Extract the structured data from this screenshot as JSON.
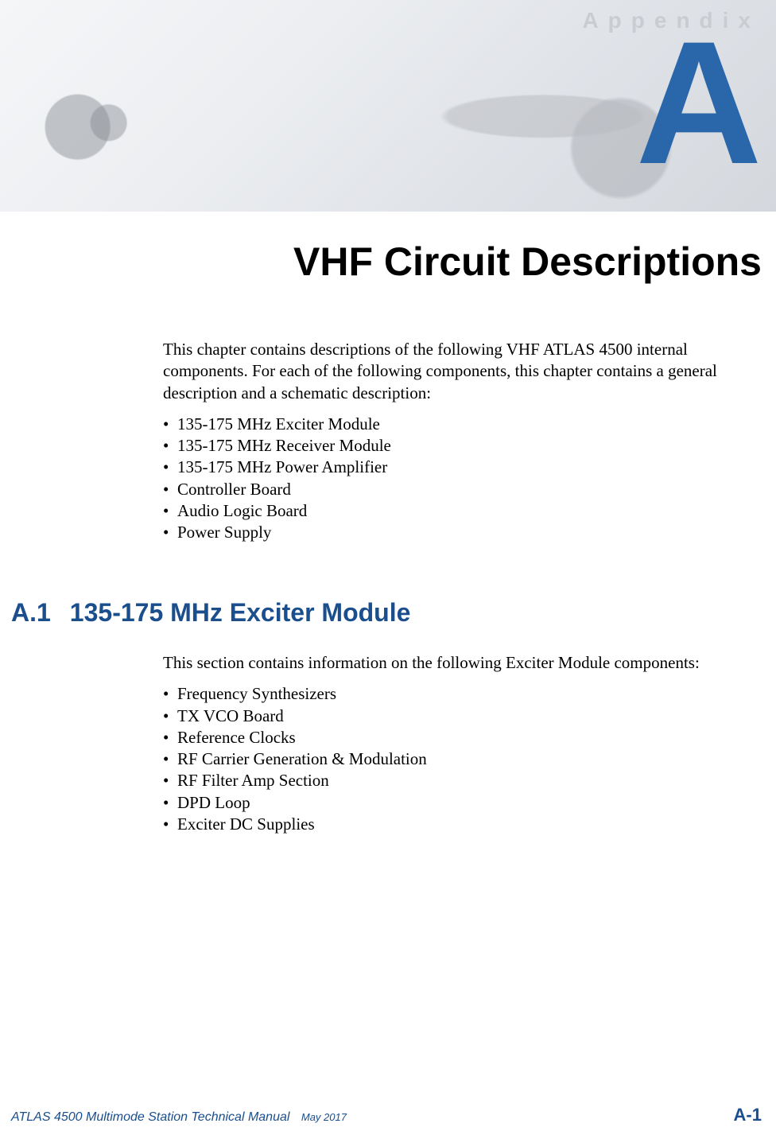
{
  "colors": {
    "accent_blue": "#1a4e8c",
    "big_letter_fill": "#2a67aa",
    "banner_label": "#c9cdd2",
    "body_text": "#000000",
    "page_bg": "#ffffff"
  },
  "banner": {
    "label": "Appendix"
  },
  "appendix_letter": "A",
  "chapter_title": "VHF Circuit Descriptions",
  "intro": {
    "paragraph": "This chapter contains descriptions of the following VHF ATLAS 4500 internal components. For each of the following components, this chapter contains a general description and a schematic description:",
    "items": [
      "135-175 MHz Exciter Module",
      "135-175 MHz Receiver Module",
      "135-175 MHz Power Amplifier",
      "Controller Board",
      "Audio Logic Board",
      "Power Supply"
    ]
  },
  "section": {
    "number": "A.1",
    "title": "135-175 MHz Exciter Module",
    "paragraph": "This section contains information on the following Exciter Module components:",
    "items": [
      "Frequency Synthesizers",
      "TX VCO Board",
      "Reference Clocks",
      "RF Carrier Generation & Modulation",
      "RF Filter Amp Section",
      "DPD Loop",
      "Exciter DC Supplies"
    ]
  },
  "footer": {
    "manual": "ATLAS 4500 Multimode Station Technical Manual",
    "date": "May 2017",
    "page": "A-1"
  },
  "typography": {
    "body_font": "Times New Roman",
    "heading_font": "Arial",
    "body_size_pt": 16,
    "chapter_title_size_pt": 38,
    "section_heading_size_pt": 24,
    "banner_label_size_pt": 21,
    "footer_manual_size_pt": 12,
    "footer_page_size_pt": 17
  }
}
